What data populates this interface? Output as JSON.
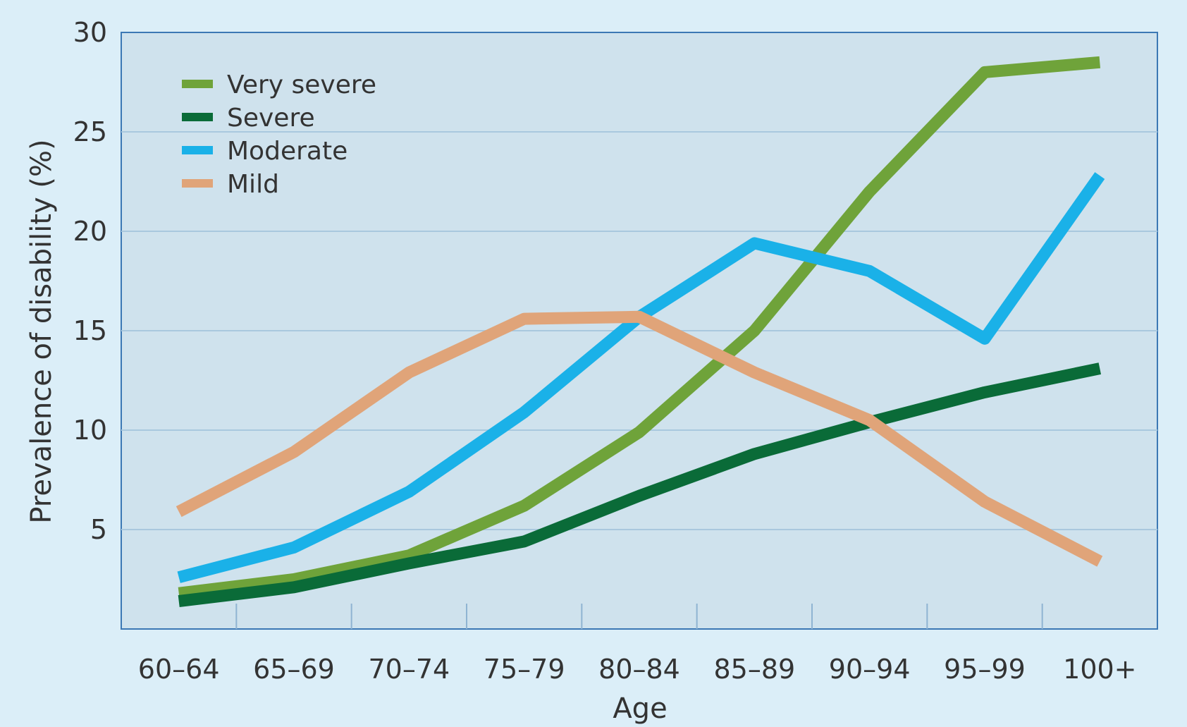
{
  "chart_data": {
    "type": "line",
    "title": "",
    "xlabel": "Age",
    "ylabel": "Prevalence of disability (%)",
    "categories": [
      "60–64",
      "65–69",
      "70–74",
      "75–79",
      "80–84",
      "85–89",
      "90–94",
      "95–99",
      "100+"
    ],
    "yticks": [
      "5",
      "10",
      "15",
      "20",
      "25",
      "30"
    ],
    "ylim": [
      0,
      30
    ],
    "grid": "horizontal",
    "legend_position": "top-left",
    "series": [
      {
        "name": "Very severe",
        "color": "#6fa33a",
        "values": [
          1.8,
          2.5,
          3.7,
          6.2,
          9.9,
          15.0,
          22.0,
          28.0,
          28.5
        ]
      },
      {
        "name": "Severe",
        "color": "#0a6b38",
        "values": [
          1.4,
          2.1,
          3.3,
          4.4,
          6.7,
          8.8,
          10.4,
          11.9,
          13.1
        ]
      },
      {
        "name": "Moderate",
        "color": "#1ab1e8",
        "values": [
          2.6,
          4.1,
          6.9,
          10.9,
          15.7,
          19.4,
          18.0,
          14.6,
          22.8
        ]
      },
      {
        "name": "Mild",
        "color": "#e0a479",
        "values": [
          5.9,
          8.9,
          12.9,
          15.6,
          15.7,
          12.9,
          10.5,
          6.4,
          3.4
        ]
      }
    ]
  }
}
